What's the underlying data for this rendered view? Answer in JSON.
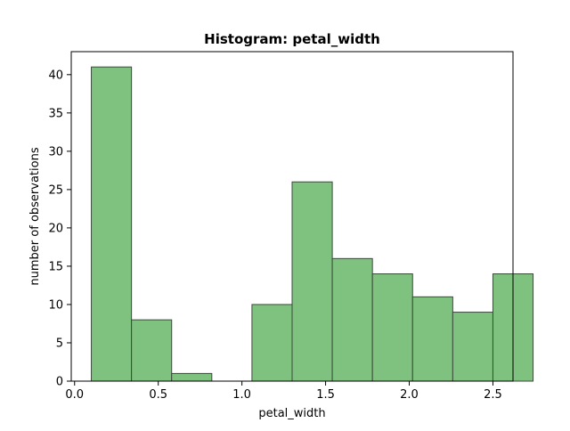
{
  "chart_data": {
    "type": "bar",
    "title": "Histogram: petal_width",
    "xlabel": "petal_width",
    "ylabel": "number of observations",
    "bins": [
      {
        "x0": 0.1,
        "x1": 0.34,
        "count": 41
      },
      {
        "x0": 0.34,
        "x1": 0.58,
        "count": 8
      },
      {
        "x0": 0.58,
        "x1": 0.82,
        "count": 1
      },
      {
        "x0": 0.82,
        "x1": 1.06,
        "count": 0
      },
      {
        "x0": 1.06,
        "x1": 1.3,
        "count": 10
      },
      {
        "x0": 1.3,
        "x1": 1.54,
        "count": 26
      },
      {
        "x0": 1.54,
        "x1": 1.78,
        "count": 16
      },
      {
        "x0": 1.78,
        "x1": 2.02,
        "count": 14
      },
      {
        "x0": 2.02,
        "x1": 2.26,
        "count": 11
      },
      {
        "x0": 2.26,
        "x1": 2.5,
        "count": 9
      },
      {
        "x0": 2.5,
        "x1": 2.74,
        "count": 14
      }
    ],
    "xlim": [
      -0.02,
      2.62
    ],
    "ylim": [
      0,
      43
    ],
    "xticks": [
      "0.0",
      "0.5",
      "1.0",
      "1.5",
      "2.0",
      "2.5"
    ],
    "yticks": [
      "0",
      "5",
      "10",
      "15",
      "20",
      "25",
      "30",
      "35",
      "40"
    ],
    "bar_color": "#7fc17f",
    "edge_color": "#3a4a3a",
    "grid": false
  }
}
